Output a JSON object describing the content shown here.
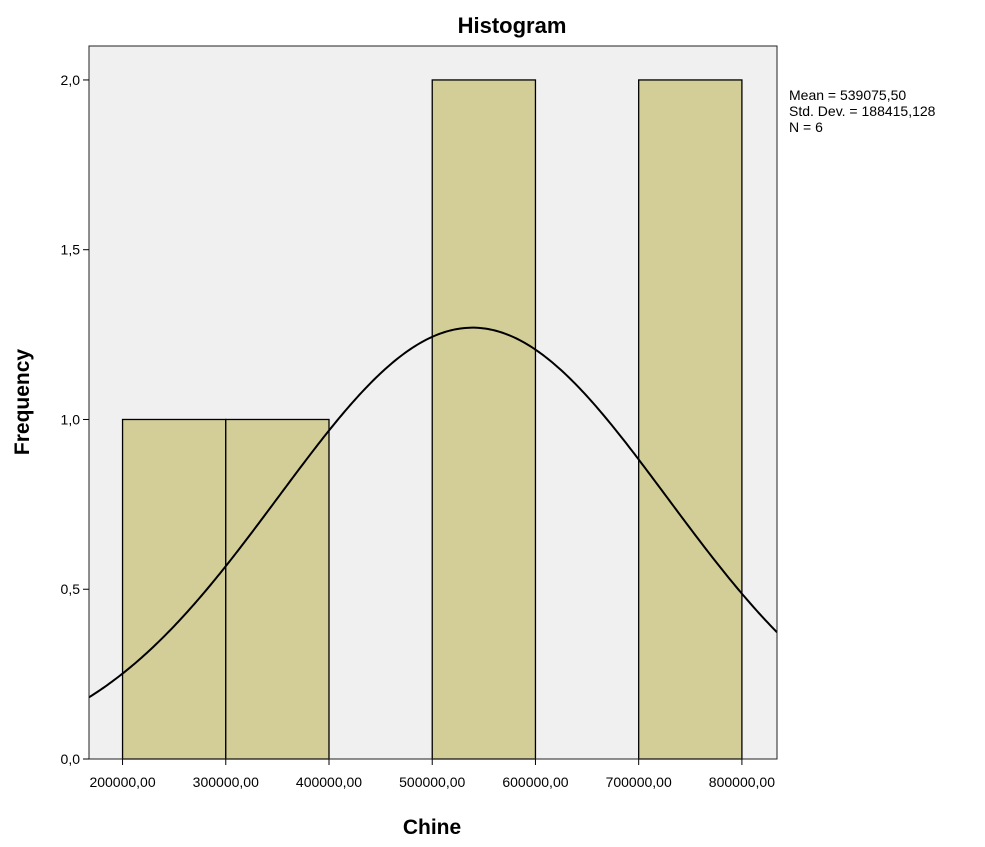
{
  "chart_data": {
    "type": "bar",
    "title": "Histogram",
    "xlabel": "Chine",
    "ylabel": "Frequency",
    "xlim": [
      167500,
      834000
    ],
    "ylim": [
      0,
      2.1
    ],
    "x_ticks": [
      {
        "value": 200000,
        "label": "200000,00"
      },
      {
        "value": 300000,
        "label": "300000,00"
      },
      {
        "value": 400000,
        "label": "400000,00"
      },
      {
        "value": 500000,
        "label": "500000,00"
      },
      {
        "value": 600000,
        "label": "600000,00"
      },
      {
        "value": 700000,
        "label": "700000,00"
      },
      {
        "value": 800000,
        "label": "800000,00"
      }
    ],
    "y_ticks": [
      {
        "value": 0,
        "label": "0,0"
      },
      {
        "value": 0.5,
        "label": "0,5"
      },
      {
        "value": 1.0,
        "label": "1,0"
      },
      {
        "value": 1.5,
        "label": "1,5"
      },
      {
        "value": 2.0,
        "label": "2,0"
      }
    ],
    "bins": [
      {
        "start": 200000,
        "end": 300000,
        "count": 1
      },
      {
        "start": 300000,
        "end": 400000,
        "count": 1
      },
      {
        "start": 400000,
        "end": 500000,
        "count": 0
      },
      {
        "start": 500000,
        "end": 600000,
        "count": 2
      },
      {
        "start": 600000,
        "end": 700000,
        "count": 0
      },
      {
        "start": 700000,
        "end": 800000,
        "count": 2
      }
    ],
    "stats": {
      "mean_label": "Mean = 539075,50",
      "std_label": "Std. Dev. = 188415,128",
      "n_label": "N = 6",
      "mean": 539075.5,
      "std_dev": 188415.128,
      "n": 6,
      "bin_width": 100000
    },
    "normal_curve": true,
    "grid": false,
    "colors": {
      "plot_background": "#f0f0f0",
      "bar_fill": "#d3ce97",
      "bar_stroke": "#000000",
      "curve": "#000000"
    }
  }
}
